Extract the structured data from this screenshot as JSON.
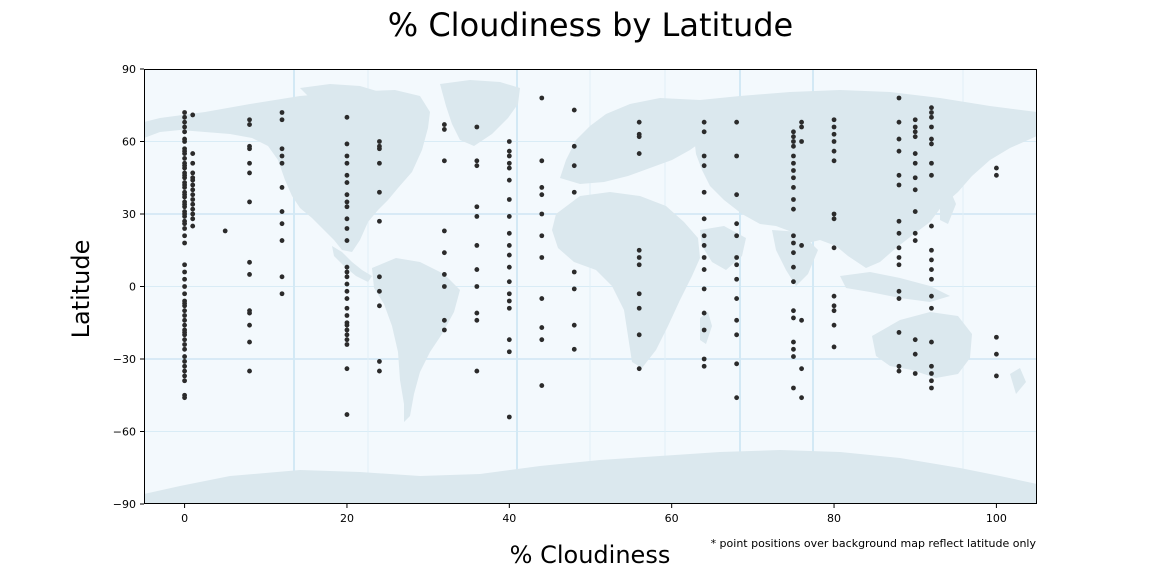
{
  "chart_data": {
    "type": "scatter",
    "title": "% Cloudiness by Latitude",
    "xlabel": "% Cloudiness",
    "ylabel": "Latitude",
    "note": "* point positions over background map reflect latitude only",
    "xlim": [
      -5,
      105
    ],
    "ylim": [
      -90,
      90
    ],
    "xticks": [
      0,
      20,
      40,
      60,
      80,
      100
    ],
    "yticks": [
      -90,
      -60,
      -30,
      0,
      30,
      60,
      90
    ],
    "ytick_labels": [
      "−90",
      "−60",
      "−30",
      "0",
      "30",
      "60",
      "90"
    ],
    "grid": false,
    "point_color": "#2b2b2b",
    "map_land_color": "#dbe8ee",
    "map_ocean_color": "#f3f9fd",
    "series": [
      {
        "x": [
          0,
          0,
          0,
          0,
          0,
          0,
          0,
          0,
          0,
          0,
          0,
          0,
          0,
          0,
          0,
          0,
          0,
          0,
          0,
          0,
          0,
          0,
          0,
          0,
          0,
          0,
          0,
          0,
          0,
          0,
          0,
          0,
          0,
          0,
          0,
          0,
          0,
          0,
          0,
          0,
          0,
          0,
          0,
          0,
          0,
          0,
          0,
          0,
          0,
          0,
          0,
          0,
          0,
          0,
          0,
          0,
          0,
          0,
          0,
          0,
          1,
          1,
          1,
          1,
          1,
          1,
          1,
          1,
          1,
          1,
          1,
          1,
          1,
          1,
          1,
          5,
          8,
          8,
          8,
          8,
          8,
          8,
          8,
          8,
          8,
          8,
          8,
          8,
          8,
          8,
          12,
          12,
          12,
          12,
          12,
          12,
          12,
          12,
          12,
          12,
          12,
          20,
          20,
          20,
          20,
          20,
          20,
          20,
          20,
          20,
          20,
          20,
          20,
          20,
          20,
          20,
          20,
          20,
          20,
          20,
          20,
          20,
          20,
          20,
          20,
          20,
          20,
          20,
          20,
          24,
          24,
          24,
          24,
          24,
          24,
          24,
          24,
          24,
          24,
          24,
          32,
          32,
          32,
          32,
          32,
          32,
          32,
          32,
          32,
          36,
          36,
          36,
          36,
          36,
          36,
          36,
          36,
          36,
          36,
          36,
          40,
          40,
          40,
          40,
          40,
          40,
          40,
          40,
          40,
          40,
          40,
          40,
          40,
          40,
          40,
          40,
          40,
          40,
          40,
          44,
          44,
          44,
          44,
          44,
          44,
          44,
          44,
          44,
          44,
          44,
          48,
          48,
          48,
          48,
          48,
          48,
          48,
          48,
          56,
          56,
          56,
          56,
          56,
          56,
          56,
          56,
          56,
          56,
          56,
          64,
          64,
          64,
          64,
          64,
          64,
          64,
          64,
          64,
          64,
          64,
          64,
          64,
          64,
          64,
          68,
          68,
          68,
          68,
          68,
          68,
          68,
          68,
          68,
          68,
          68,
          68,
          68,
          75,
          75,
          75,
          75,
          75,
          75,
          75,
          75,
          75,
          75,
          75,
          75,
          75,
          75,
          75,
          75,
          75,
          75,
          75,
          75,
          75,
          75,
          76,
          76,
          76,
          76,
          76,
          76,
          76,
          80,
          80,
          80,
          80,
          80,
          80,
          80,
          80,
          80,
          80,
          80,
          80,
          80,
          80,
          88,
          88,
          88,
          88,
          88,
          88,
          88,
          88,
          88,
          88,
          88,
          88,
          88,
          88,
          88,
          88,
          90,
          90,
          90,
          90,
          90,
          90,
          90,
          90,
          90,
          90,
          90,
          90,
          90,
          90,
          92,
          92,
          92,
          92,
          92,
          92,
          92,
          92,
          92,
          92,
          92,
          92,
          92,
          92,
          92,
          92,
          92,
          92,
          92,
          92,
          100,
          100,
          100,
          100,
          100
        ],
        "y": [
          72,
          70,
          68,
          66,
          64,
          60,
          57,
          55,
          53,
          51,
          49,
          47,
          45,
          43,
          41,
          39,
          37,
          35,
          33,
          31,
          29,
          27,
          24,
          21,
          18,
          9,
          6,
          3,
          0,
          -3,
          -6,
          -8,
          -10,
          -12,
          -14,
          -16,
          -18,
          -20,
          -22,
          -24,
          -26,
          -29,
          -31,
          -33,
          -35,
          -39,
          -45,
          -46,
          61,
          56,
          50,
          46,
          42,
          38,
          34,
          30,
          26,
          -7,
          -19,
          -37,
          71,
          55,
          51,
          47,
          44,
          42,
          40,
          38,
          36,
          34,
          32,
          30,
          28,
          45,
          25,
          23,
          69,
          67,
          58,
          57,
          51,
          47,
          35,
          10,
          5,
          -10,
          -11,
          -16,
          -23,
          -35,
          72,
          69,
          57,
          54,
          51,
          41,
          31,
          26,
          19,
          4,
          -3,
          70,
          59,
          54,
          51,
          46,
          43,
          38,
          35,
          33,
          28,
          24,
          19,
          8,
          6,
          4,
          1,
          -2,
          -5,
          -9,
          -12,
          -15,
          -18,
          -20,
          -22,
          -24,
          -34,
          -53,
          -16,
          60,
          58,
          57,
          51,
          39,
          27,
          4,
          -2,
          -8,
          -31,
          -35,
          67,
          65,
          52,
          23,
          14,
          5,
          0,
          -14,
          -18,
          66,
          52,
          50,
          33,
          29,
          17,
          7,
          0,
          -11,
          -14,
          -35,
          60,
          56,
          54,
          51,
          49,
          44,
          36,
          29,
          22,
          17,
          13,
          8,
          2,
          -3,
          -6,
          -9,
          -22,
          -27,
          -54,
          78,
          52,
          41,
          38,
          30,
          21,
          12,
          -5,
          -17,
          -22,
          -41,
          73,
          58,
          50,
          39,
          6,
          -1,
          -16,
          -26,
          68,
          63,
          62,
          55,
          15,
          12,
          9,
          -3,
          -9,
          -20,
          -34,
          68,
          64,
          54,
          50,
          39,
          28,
          21,
          17,
          12,
          7,
          -1,
          -11,
          -18,
          -30,
          -33,
          68,
          54,
          38,
          26,
          21,
          12,
          9,
          3,
          -5,
          -14,
          -20,
          -32,
          -46,
          64,
          62,
          60,
          58,
          54,
          51,
          48,
          45,
          41,
          36,
          32,
          21,
          18,
          14,
          8,
          -10,
          -13,
          -23,
          -29,
          -42,
          2,
          -26,
          68,
          66,
          60,
          17,
          -14,
          -34,
          -46,
          69,
          66,
          63,
          60,
          56,
          52,
          30,
          28,
          16,
          -4,
          -8,
          -10,
          -16,
          -25,
          78,
          68,
          61,
          56,
          46,
          42,
          27,
          22,
          16,
          12,
          9,
          -2,
          -5,
          -19,
          -33,
          -35,
          69,
          66,
          64,
          62,
          55,
          51,
          45,
          40,
          31,
          22,
          19,
          -22,
          -28,
          -36,
          74,
          72,
          70,
          66,
          61,
          59,
          51,
          46,
          25,
          15,
          11,
          7,
          3,
          -4,
          -9,
          -23,
          -33,
          -36,
          -39,
          -42,
          49,
          46,
          -21,
          -28,
          -37
        ]
      }
    ]
  }
}
